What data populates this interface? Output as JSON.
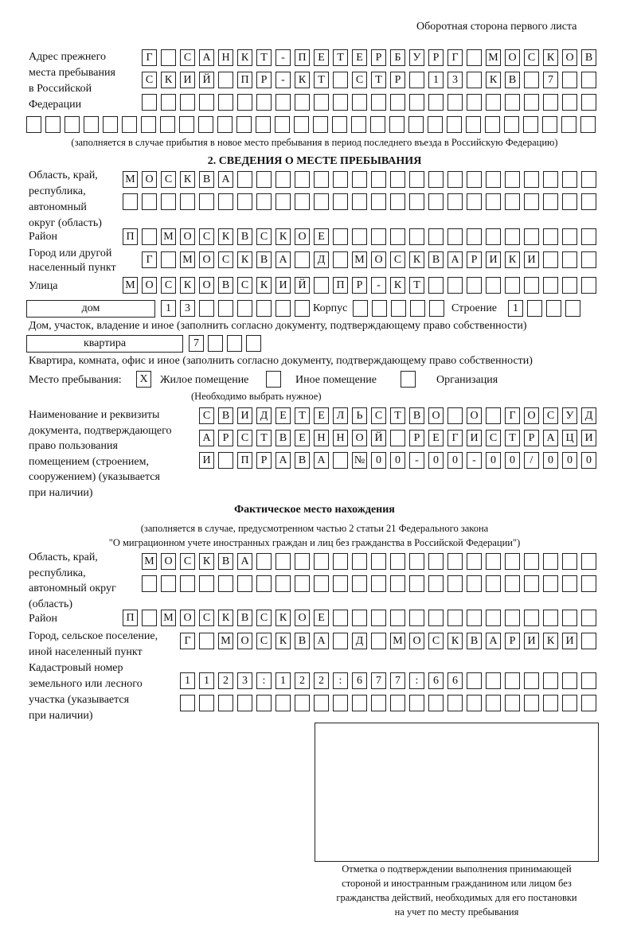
{
  "header": "Оборотная сторона первого листа",
  "prev_address": {
    "label": [
      "Адрес прежнего",
      "места пребывания",
      "в Российской",
      "Федерации"
    ],
    "rows": [
      [
        "Г",
        "",
        "С",
        "А",
        "Н",
        "К",
        "Т",
        "-",
        "П",
        "Е",
        "Т",
        "Е",
        "Р",
        "Б",
        "У",
        "Р",
        "Г",
        "",
        "М",
        "О",
        "С",
        "К",
        "О",
        "В"
      ],
      [
        "С",
        "К",
        "И",
        "Й",
        "",
        "П",
        "Р",
        "-",
        "К",
        "Т",
        "",
        "С",
        "Т",
        "Р",
        "",
        "1",
        "3",
        "",
        "К",
        "В",
        "",
        "7",
        "",
        ""
      ],
      [
        "",
        "",
        "",
        "",
        "",
        "",
        "",
        "",
        "",
        "",
        "",
        "",
        "",
        "",
        "",
        "",
        "",
        "",
        "",
        "",
        "",
        "",
        "",
        ""
      ],
      [
        "",
        "",
        "",
        "",
        "",
        "",
        "",
        "",
        "",
        "",
        "",
        "",
        "",
        "",
        "",
        "",
        "",
        "",
        "",
        "",
        "",
        "",
        "",
        "",
        "",
        "",
        "",
        "",
        "",
        ""
      ]
    ],
    "note": "(заполняется в случае прибытия в новое место пребывания в период последнего въезда в Российскую Федерацию)"
  },
  "section2": {
    "title": "2. СВЕДЕНИЯ О МЕСТЕ ПРЕБЫВАНИЯ",
    "region_label": [
      "Область, край,",
      "республика,",
      "автономный",
      "округ (область)"
    ],
    "region_rows": [
      [
        "М",
        "О",
        "С",
        "К",
        "В",
        "А",
        "",
        "",
        "",
        "",
        "",
        "",
        "",
        "",
        "",
        "",
        "",
        "",
        "",
        "",
        "",
        "",
        "",
        "",
        ""
      ],
      [
        "",
        "",
        "",
        "",
        "",
        "",
        "",
        "",
        "",
        "",
        "",
        "",
        "",
        "",
        "",
        "",
        "",
        "",
        "",
        "",
        "",
        "",
        "",
        "",
        ""
      ]
    ],
    "district_label": "Район",
    "district": [
      "П",
      "",
      "М",
      "О",
      "С",
      "К",
      "В",
      "С",
      "К",
      "О",
      "Е",
      "",
      "",
      "",
      "",
      "",
      "",
      "",
      "",
      "",
      "",
      "",
      "",
      "",
      ""
    ],
    "city_label": [
      "Город или другой",
      "населенный пункт"
    ],
    "city": [
      "Г",
      "",
      "М",
      "О",
      "С",
      "К",
      "В",
      "А",
      "",
      "Д",
      "",
      "М",
      "О",
      "С",
      "К",
      "В",
      "А",
      "Р",
      "И",
      "К",
      "И",
      "",
      "",
      ""
    ],
    "street_label": "Улица",
    "street": [
      "М",
      "О",
      "С",
      "К",
      "О",
      "В",
      "С",
      "К",
      "И",
      "Й",
      "",
      "П",
      "Р",
      "-",
      "К",
      "Т",
      "",
      "",
      "",
      "",
      "",
      "",
      "",
      "",
      ""
    ],
    "house_type": "дом",
    "house": [
      "1",
      "3",
      "",
      "",
      "",
      "",
      "",
      ""
    ],
    "korpus_label": "Корпус",
    "korpus": [
      "",
      "",
      "",
      "",
      ""
    ],
    "stroenie_label": "Строение",
    "stroenie": [
      "1",
      "",
      "",
      ""
    ],
    "house_note": "Дом, участок, владение и иное (заполнить согласно документу, подтверждающему право собственности)",
    "apt_type": "квартира",
    "apt": [
      "7",
      "",
      "",
      ""
    ],
    "apt_note": "Квартира, комната, офис и иное (заполнить согласно документу, подтверждающему право собственности)",
    "stay_label": "Место пребывания:",
    "stay_options": [
      {
        "label": "Жилое помещение",
        "mark": "X"
      },
      {
        "label": "Иное помещение",
        "mark": ""
      },
      {
        "label": "Организация",
        "mark": ""
      }
    ],
    "stay_note": "(Необходимо выбрать нужное)",
    "doc_label": [
      "Наименование и реквизиты",
      "документа, подтверждающего",
      "право пользования",
      "помещением (строением,",
      "сооружением) (указывается",
      "при наличии)"
    ],
    "doc_rows": [
      [
        "С",
        "В",
        "И",
        "Д",
        "Е",
        "Т",
        "Е",
        "Л",
        "Ь",
        "С",
        "Т",
        "В",
        "О",
        "",
        "О",
        "",
        "Г",
        "О",
        "С",
        "У",
        "Д"
      ],
      [
        "А",
        "Р",
        "С",
        "Т",
        "В",
        "Е",
        "Н",
        "Н",
        "О",
        "Й",
        "",
        "Р",
        "Е",
        "Г",
        "И",
        "С",
        "Т",
        "Р",
        "А",
        "Ц",
        "И"
      ],
      [
        "И",
        "",
        "П",
        "Р",
        "А",
        "В",
        "А",
        "",
        "№",
        "0",
        "0",
        "-",
        "0",
        "0",
        "-",
        "0",
        "0",
        "/",
        "0",
        "0",
        "0"
      ]
    ]
  },
  "actual": {
    "title": "Фактическое место нахождения",
    "note": [
      "(заполняется в случае, предусмотренном частью 2 статьи 21 Федерального закона",
      "\"О миграционном учете иностранных граждан и лиц без гражданства в Российской Федерации\")"
    ],
    "region_label": [
      "Область, край,",
      "республика,",
      "автономный округ",
      "(область)"
    ],
    "region_rows": [
      [
        "М",
        "О",
        "С",
        "К",
        "В",
        "А",
        "",
        "",
        "",
        "",
        "",
        "",
        "",
        "",
        "",
        "",
        "",
        "",
        "",
        "",
        "",
        "",
        "",
        ""
      ],
      [
        "",
        "",
        "",
        "",
        "",
        "",
        "",
        "",
        "",
        "",
        "",
        "",
        "",
        "",
        "",
        "",
        "",
        "",
        "",
        "",
        "",
        "",
        "",
        ""
      ]
    ],
    "district_label": "Район",
    "district": [
      "П",
      "",
      "М",
      "О",
      "С",
      "К",
      "В",
      "С",
      "К",
      "О",
      "Е",
      "",
      "",
      "",
      "",
      "",
      "",
      "",
      "",
      "",
      "",
      "",
      "",
      "",
      ""
    ],
    "city_label": [
      "Город, сельское поселение,",
      "иной населенный пункт"
    ],
    "city": [
      "Г",
      "",
      "М",
      "О",
      "С",
      "К",
      "В",
      "А",
      "",
      "Д",
      "",
      "М",
      "О",
      "С",
      "К",
      "В",
      "А",
      "Р",
      "И",
      "К",
      "И",
      ""
    ],
    "cad_label": [
      "Кадастровый номер",
      "земельного или лесного",
      "участка (указывается",
      "при наличии)"
    ],
    "cad_rows": [
      [
        "1",
        "1",
        "2",
        "3",
        ":",
        "1",
        "2",
        "2",
        ":",
        "6",
        "7",
        "7",
        ":",
        "6",
        "6",
        "",
        "",
        "",
        "",
        "",
        "",
        ""
      ],
      [
        "",
        "",
        "",
        "",
        "",
        "",
        "",
        "",
        "",
        "",
        "",
        "",
        "",
        "",
        "",
        "",
        "",
        "",
        "",
        "",
        "",
        ""
      ]
    ]
  },
  "stamp_caption": [
    "Отметка о подтверждении выполнения принимающей",
    "стороной и иностранным гражданином или лицом без",
    "гражданства действий, необходимых для его постановки",
    "на учет по месту пребывания"
  ]
}
